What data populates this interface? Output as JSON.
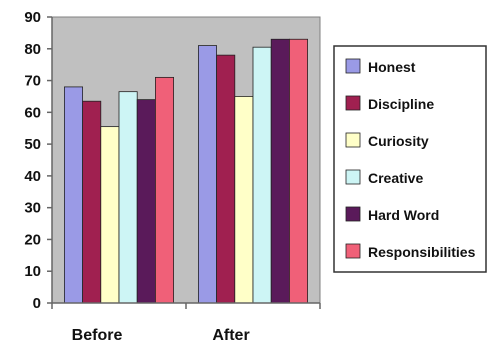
{
  "chart_data": {
    "type": "bar",
    "categories": [
      "Before",
      "After"
    ],
    "series": [
      {
        "name": "Honest",
        "values": [
          68,
          81
        ],
        "color": "#9a9ae6"
      },
      {
        "name": "Discipline",
        "values": [
          63.5,
          78
        ],
        "color": "#a02050"
      },
      {
        "name": "Curiosity",
        "values": [
          55.5,
          65
        ],
        "color": "#ffffc8"
      },
      {
        "name": "Creative",
        "values": [
          66.5,
          80.5
        ],
        "color": "#cdf5f5"
      },
      {
        "name": "Hard Word",
        "values": [
          64,
          83
        ],
        "color": "#5a1a5a"
      },
      {
        "name": "Responsibilities",
        "values": [
          71,
          83
        ],
        "color": "#f06078"
      }
    ],
    "ylim": [
      0,
      90
    ],
    "yticks": [
      0,
      10,
      20,
      30,
      40,
      50,
      60,
      70,
      80,
      90
    ],
    "plot_background": "#c0c0c0",
    "grid": false,
    "legend_position": "right",
    "title": "",
    "xlabel": "",
    "ylabel": ""
  }
}
